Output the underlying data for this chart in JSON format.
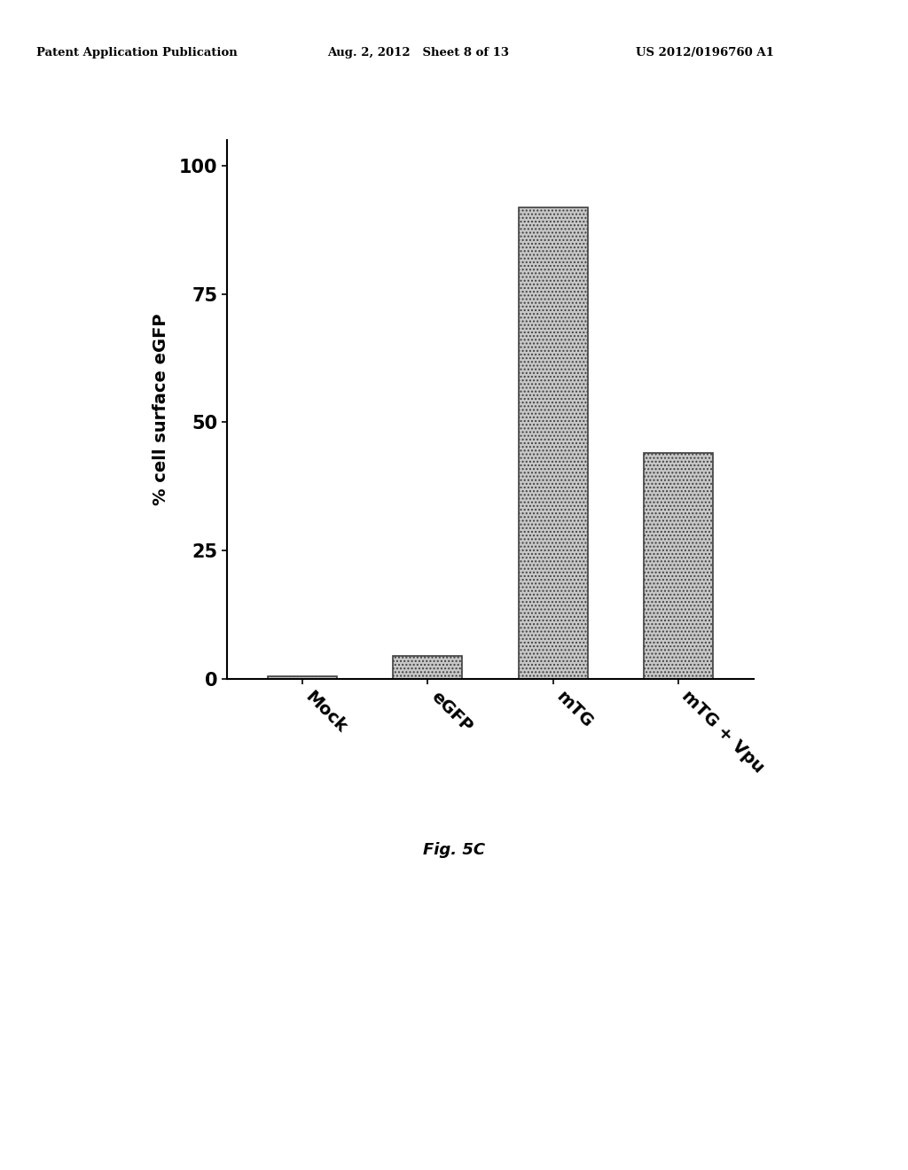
{
  "categories": [
    "Mock",
    "eGFP",
    "mTG",
    "mTG + Vpu"
  ],
  "values": [
    0.5,
    4.5,
    92,
    44
  ],
  "ylabel": "% cell surface eGFP",
  "yticks": [
    0,
    25,
    50,
    75,
    100
  ],
  "ylim": [
    0,
    105
  ],
  "fig_width": 10.24,
  "fig_height": 13.2,
  "caption": "Fig. 5C",
  "header_left": "Patent Application Publication",
  "header_mid": "Aug. 2, 2012   Sheet 8 of 13",
  "header_right": "US 2012/0196760 A1",
  "background_color": "#ffffff",
  "bar_color": "#c8c8c8",
  "bar_edgecolor": "#404040",
  "bar_width": 0.55,
  "xlim_left": -0.6,
  "xlim_right": 3.6
}
